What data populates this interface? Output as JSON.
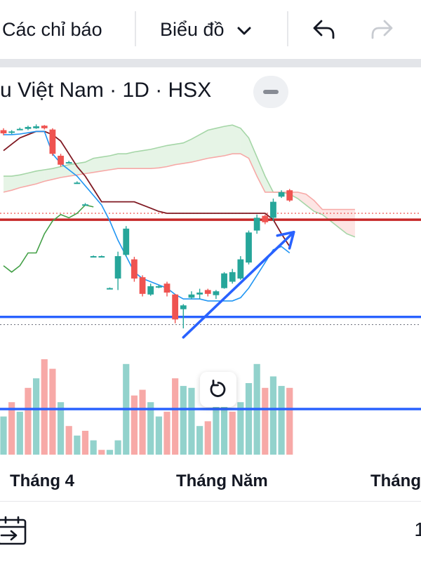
{
  "toolbar": {
    "indicators_label": "Các chỉ báo",
    "chart_type_label": "Biểu đồ"
  },
  "legend": {
    "title": "u Việt Nam · 1D · HSX"
  },
  "time_axis": {
    "label_april": "Tháng 4",
    "label_may": "Tháng Năm",
    "label_june": "Tháng"
  },
  "bottom_bar": {
    "right_text": "1"
  },
  "colors": {
    "up": "#26a69a",
    "down": "#ef5350",
    "conversion_line": "#2196f3",
    "base_line": "#801922",
    "lagging_span": "#43a047",
    "span_a": "#a5d6a7",
    "span_b": "#f7a9a7",
    "support_line": "#2962ff",
    "resistance_line": "#c62828",
    "trend_arrow": "#2962ff"
  },
  "chart_data": {
    "type": "candlestick",
    "interval": "1D",
    "title": "",
    "xlabel": "",
    "ylabel": "",
    "ylim": [
      7.25,
      11.2
    ],
    "x_tick_labels": [
      "Tháng 4",
      "Tháng Năm",
      "Tháng"
    ],
    "candles": [
      {
        "o": 10.92,
        "h": 10.95,
        "l": 10.84,
        "c": 10.87
      },
      {
        "o": 10.88,
        "h": 10.92,
        "l": 10.86,
        "c": 10.9
      },
      {
        "o": 10.92,
        "h": 10.96,
        "l": 10.92,
        "c": 10.94
      },
      {
        "o": 10.94,
        "h": 10.99,
        "l": 10.92,
        "c": 10.97
      },
      {
        "o": 10.95,
        "h": 11.01,
        "l": 10.94,
        "c": 10.98
      },
      {
        "o": 10.99,
        "h": 11.0,
        "l": 10.93,
        "c": 10.95
      },
      {
        "o": 10.93,
        "h": 10.95,
        "l": 10.52,
        "c": 10.55
      },
      {
        "o": 10.52,
        "h": 10.55,
        "l": 10.35,
        "c": 10.38
      },
      {
        "o": 10.42,
        "h": 10.44,
        "l": 10.4,
        "c": 10.42
      },
      {
        "o": 10.1,
        "h": 10.12,
        "l": 10.08,
        "c": 10.1
      },
      {
        "o": 9.76,
        "h": 9.78,
        "l": 9.74,
        "c": 9.76
      },
      {
        "o": 8.95,
        "h": 8.96,
        "l": 8.94,
        "c": 8.95
      },
      {
        "o": 8.95,
        "h": 8.96,
        "l": 8.94,
        "c": 8.95
      },
      {
        "o": 8.45,
        "h": 8.46,
        "l": 8.44,
        "c": 8.45
      },
      {
        "o": 8.6,
        "h": 9.02,
        "l": 8.42,
        "c": 8.95
      },
      {
        "o": 8.97,
        "h": 9.42,
        "l": 8.94,
        "c": 9.38
      },
      {
        "o": 8.9,
        "h": 8.94,
        "l": 8.55,
        "c": 8.6
      },
      {
        "o": 8.62,
        "h": 8.65,
        "l": 8.32,
        "c": 8.36
      },
      {
        "o": 8.35,
        "h": 8.52,
        "l": 8.33,
        "c": 8.48
      },
      {
        "o": 8.48,
        "h": 8.5,
        "l": 8.45,
        "c": 8.48
      },
      {
        "o": 8.52,
        "h": 8.55,
        "l": 8.32,
        "c": 8.38
      },
      {
        "o": 8.35,
        "h": 8.36,
        "l": 7.9,
        "c": 7.96
      },
      {
        "o": 8.12,
        "h": 8.2,
        "l": 7.82,
        "c": 8.18
      },
      {
        "o": 8.3,
        "h": 8.4,
        "l": 8.28,
        "c": 8.35
      },
      {
        "o": 8.35,
        "h": 8.44,
        "l": 8.28,
        "c": 8.38
      },
      {
        "o": 8.42,
        "h": 8.44,
        "l": 8.32,
        "c": 8.36
      },
      {
        "o": 8.34,
        "h": 8.42,
        "l": 8.28,
        "c": 8.4
      },
      {
        "o": 8.45,
        "h": 8.7,
        "l": 8.44,
        "c": 8.68
      },
      {
        "o": 8.55,
        "h": 8.75,
        "l": 8.52,
        "c": 8.7
      },
      {
        "o": 8.6,
        "h": 8.95,
        "l": 8.58,
        "c": 8.9
      },
      {
        "o": 8.85,
        "h": 9.35,
        "l": 8.82,
        "c": 9.32
      },
      {
        "o": 9.35,
        "h": 9.6,
        "l": 9.3,
        "c": 9.55
      },
      {
        "o": 9.58,
        "h": 9.6,
        "l": 9.45,
        "c": 9.48
      },
      {
        "o": 9.55,
        "h": 9.85,
        "l": 9.5,
        "c": 9.8
      },
      {
        "o": 9.88,
        "h": 9.98,
        "l": 9.86,
        "c": 9.95
      },
      {
        "o": 9.98,
        "h": 10.0,
        "l": 9.8,
        "c": 9.82
      }
    ],
    "volume": [
      {
        "v": 0.4,
        "up": true
      },
      {
        "v": 0.55,
        "up": false
      },
      {
        "v": 0.45,
        "up": true
      },
      {
        "v": 0.7,
        "up": false
      },
      {
        "v": 0.8,
        "up": true
      },
      {
        "v": 1.0,
        "up": false
      },
      {
        "v": 0.9,
        "up": false
      },
      {
        "v": 0.55,
        "up": true
      },
      {
        "v": 0.3,
        "up": false
      },
      {
        "v": 0.2,
        "up": true
      },
      {
        "v": 0.25,
        "up": false
      },
      {
        "v": 0.15,
        "up": true
      },
      {
        "v": 0.05,
        "up": false
      },
      {
        "v": 0.05,
        "up": true
      },
      {
        "v": 0.15,
        "up": true
      },
      {
        "v": 0.95,
        "up": true
      },
      {
        "v": 0.62,
        "up": false
      },
      {
        "v": 0.68,
        "up": false
      },
      {
        "v": 0.55,
        "up": true
      },
      {
        "v": 0.4,
        "up": true
      },
      {
        "v": 0.45,
        "up": false
      },
      {
        "v": 0.8,
        "up": false
      },
      {
        "v": 0.72,
        "up": true
      },
      {
        "v": 0.7,
        "up": true
      },
      {
        "v": 0.3,
        "up": true
      },
      {
        "v": 0.35,
        "up": false
      },
      {
        "v": 0.55,
        "up": true
      },
      {
        "v": 0.75,
        "up": true
      },
      {
        "v": 0.45,
        "up": false
      },
      {
        "v": 0.55,
        "up": true
      },
      {
        "v": 0.75,
        "up": true
      },
      {
        "v": 0.95,
        "up": true
      },
      {
        "v": 0.7,
        "up": false
      },
      {
        "v": 0.82,
        "up": true
      },
      {
        "v": 0.72,
        "up": true
      },
      {
        "v": 0.7,
        "up": false
      }
    ],
    "ichimoku": {
      "conversion_line": [
        10.85,
        10.85,
        10.86,
        10.88,
        10.9,
        10.9,
        10.55,
        10.4,
        10.3,
        10.2,
        10.05,
        9.9,
        9.75,
        9.5,
        9.2,
        8.95,
        8.7,
        8.6,
        8.55,
        8.5,
        8.45,
        8.35,
        8.28,
        8.28,
        8.28,
        8.25,
        8.25,
        8.25,
        8.25,
        8.3,
        8.45,
        8.65,
        8.85,
        9.05,
        9.1,
        9.0
      ],
      "base_line": [
        10.6,
        10.7,
        10.8,
        10.85,
        10.9,
        10.9,
        10.85,
        10.75,
        10.55,
        10.35,
        10.2,
        10.0,
        9.8,
        9.8,
        9.8,
        9.8,
        9.8,
        9.75,
        9.7,
        9.65,
        9.62,
        9.62,
        9.62,
        9.62,
        9.62,
        9.62,
        9.62,
        9.62,
        9.62,
        9.62,
        9.62,
        9.62,
        9.62,
        9.52,
        9.3,
        9.1
      ],
      "lagging_span": [
        8.8,
        8.7,
        8.8,
        9.0,
        9.0,
        9.3,
        9.5,
        9.6,
        9.55,
        9.62,
        9.75,
        9.72
      ],
      "lagging_start_index": 0,
      "span_a": [
        10.2,
        10.2,
        10.22,
        10.25,
        10.28,
        10.3,
        10.32,
        10.35,
        10.38,
        10.4,
        10.42,
        10.48,
        10.5,
        10.52,
        10.55,
        10.55,
        10.58,
        10.6,
        10.62,
        10.65,
        10.68,
        10.7,
        10.72,
        10.78,
        10.85,
        10.92,
        10.95,
        10.98,
        11.0,
        10.95,
        10.8,
        10.5,
        10.2,
        9.95,
        9.95,
        9.92,
        9.85,
        9.75,
        9.65,
        9.6,
        9.5,
        9.4,
        9.3,
        9.25
      ],
      "span_b": [
        9.95,
        9.98,
        10.02,
        10.05,
        10.08,
        10.12,
        10.15,
        10.18,
        10.2,
        10.22,
        10.24,
        10.26,
        10.28,
        10.3,
        10.32,
        10.32,
        10.32,
        10.32,
        10.32,
        10.33,
        10.35,
        10.38,
        10.4,
        10.42,
        10.45,
        10.48,
        10.5,
        10.52,
        10.55,
        10.55,
        10.48,
        10.2,
        9.95,
        9.95,
        9.95,
        9.95,
        9.95,
        9.92,
        9.82,
        9.68,
        9.68,
        9.68,
        9.68,
        9.68
      ]
    },
    "horizontal_lines": [
      {
        "kind": "support",
        "value": 8.0
      },
      {
        "kind": "support",
        "value": 7.5
      },
      {
        "kind": "resistance",
        "value": 9.52
      }
    ],
    "dotted_levels": [
      9.62,
      7.88
    ],
    "trend_arrow": {
      "from_index": 22,
      "from_value": 7.68,
      "to_index": 35,
      "to_value": 9.48
    }
  }
}
